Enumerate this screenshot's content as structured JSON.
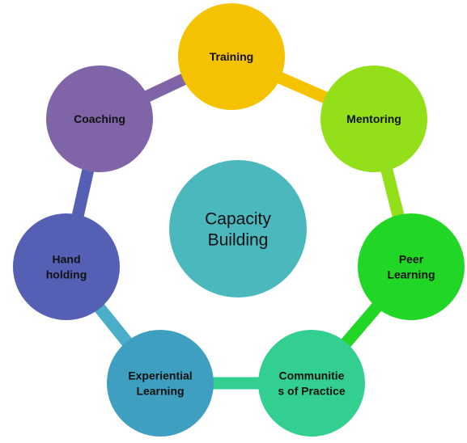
{
  "center": {
    "lines": [
      "Capacity",
      "Building"
    ],
    "color": "#4BB8BE"
  },
  "nodes": [
    {
      "id": "training",
      "lines": [
        "Training"
      ],
      "color": "#F5C200"
    },
    {
      "id": "mentoring",
      "lines": [
        "Mentoring"
      ],
      "color": "#93E01A"
    },
    {
      "id": "peer-learning",
      "lines": [
        "Peer",
        "Learning"
      ],
      "color": "#22D625"
    },
    {
      "id": "communities-of-practice",
      "lines": [
        "Communitie",
        "s of Practice"
      ],
      "color": "#33CF91"
    },
    {
      "id": "experiential-learning",
      "lines": [
        "Experiential",
        "Learning"
      ],
      "color": "#3F9FC0"
    },
    {
      "id": "hand-holding",
      "lines": [
        "Hand",
        "holding"
      ],
      "color": "#5560B5"
    },
    {
      "id": "coaching",
      "lines": [
        "Coaching"
      ],
      "color": "#8064A8"
    }
  ],
  "connectors": [
    {
      "from": "training",
      "to": "mentoring",
      "color": "#F5C200"
    },
    {
      "from": "mentoring",
      "to": "peer-learning",
      "color": "#93E01A"
    },
    {
      "from": "peer-learning",
      "to": "communities-of-practice",
      "color": "#22D625"
    },
    {
      "from": "communities-of-practice",
      "to": "experiential-learning",
      "color": "#33CF91"
    },
    {
      "from": "experiential-learning",
      "to": "hand-holding",
      "color": "#4BAEC8"
    },
    {
      "from": "hand-holding",
      "to": "coaching",
      "color": "#5560B5"
    },
    {
      "from": "coaching",
      "to": "training",
      "color": "#8064A8"
    }
  ]
}
